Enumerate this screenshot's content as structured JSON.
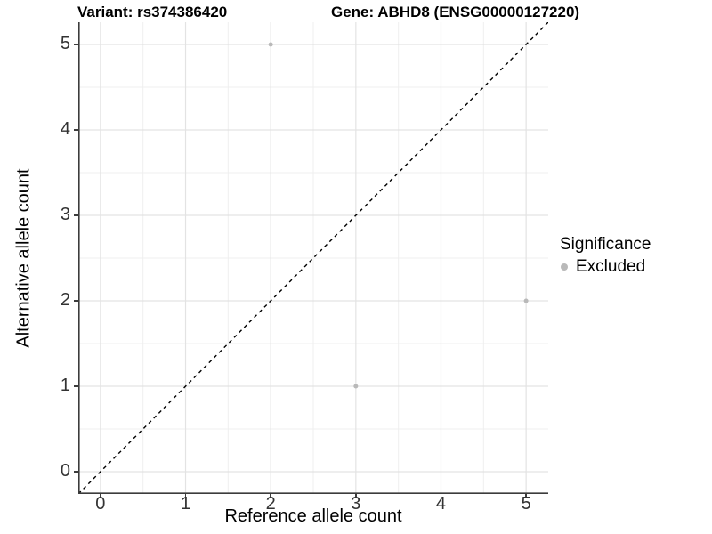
{
  "chart_data": {
    "type": "scatter",
    "title_left": "Variant: rs374386420",
    "title_right": "Gene: ABHD8 (ENSG00000127220)",
    "xlabel": "Reference allele count",
    "ylabel": "Alternative allele count",
    "xlim": [
      -0.26,
      5.26
    ],
    "ylim": [
      -0.26,
      5.26
    ],
    "xticks": [
      0,
      1,
      2,
      3,
      4,
      5
    ],
    "yticks": [
      0,
      1,
      2,
      3,
      4,
      5
    ],
    "grid": "major+minor",
    "minor_grid_step": 0.5,
    "series": [
      {
        "name": "Excluded",
        "color": "#b9b9b9",
        "points": [
          [
            2,
            5
          ],
          [
            3,
            1
          ],
          [
            5,
            2
          ]
        ]
      }
    ],
    "reference_line": {
      "slope": 1,
      "intercept": 0,
      "style": "dashed",
      "color": "#000000"
    },
    "legend": {
      "title": "Significance",
      "position": "right",
      "entries": [
        {
          "label": "Excluded",
          "color": "#b9b9b9"
        }
      ]
    }
  },
  "style": {
    "grid_major_color": "#e3e3e3",
    "grid_minor_color": "#efefef",
    "axis_line_color": "#3c3c3c",
    "tick_label_color": "#333333",
    "background": "#ffffff"
  }
}
